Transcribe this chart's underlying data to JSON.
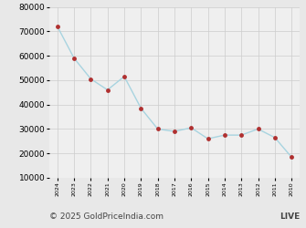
{
  "years": [
    "2024",
    "2023",
    "2022",
    "2021",
    "2020",
    "2019",
    "2018",
    "2017",
    "2016",
    "2015",
    "2014",
    "2013",
    "2012",
    "2011",
    "2010"
  ],
  "prices": [
    72000,
    59000,
    50500,
    46000,
    51500,
    38500,
    30000,
    29000,
    30500,
    26000,
    27500,
    27500,
    30000,
    26500,
    18500
  ],
  "line_color": "#a8d4e0",
  "marker_color": "#b03030",
  "marker_size": 3.5,
  "line_width": 1.0,
  "ylim": [
    10000,
    80000
  ],
  "yticks": [
    10000,
    20000,
    30000,
    40000,
    50000,
    60000,
    70000,
    80000
  ],
  "grid_color": "#cccccc",
  "bg_color": "#e8e8e8",
  "plot_bg": "#efefef",
  "footer_text": "© 2025 GoldPriceIndia.com",
  "footer_live": "LIVE",
  "footer_fontsize": 6.5,
  "ytick_fontsize": 6.5,
  "xtick_fontsize": 4.5
}
